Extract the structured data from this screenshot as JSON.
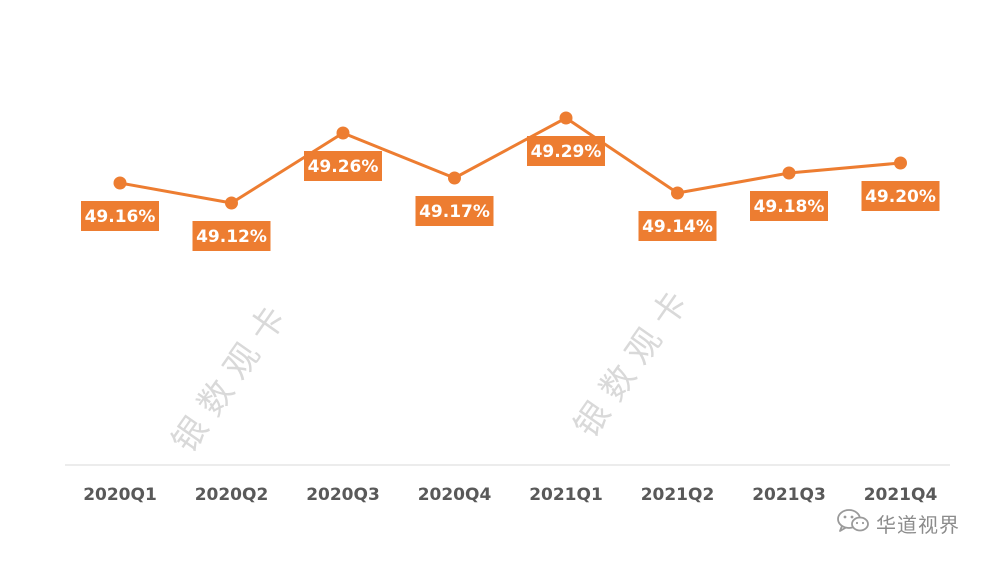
{
  "chart_data": {
    "type": "line",
    "categories": [
      "2020Q1",
      "2020Q2",
      "2020Q3",
      "2020Q4",
      "2021Q1",
      "2021Q2",
      "2021Q3",
      "2021Q4"
    ],
    "series": [
      {
        "values": [
          49.16,
          49.12,
          49.26,
          49.17,
          49.29,
          49.14,
          49.18,
          49.2
        ],
        "labels": [
          "49.16%",
          "49.12%",
          "49.26%",
          "49.17%",
          "49.29%",
          "49.14%",
          "49.18%",
          "49.20%"
        ],
        "label_positions": [
          "below",
          "below",
          "below",
          "below",
          "below",
          "below",
          "below",
          "below"
        ],
        "color": "#ED7D31"
      }
    ],
    "ylim": [
      48.95,
      49.35
    ],
    "grid": false,
    "axis_line_color": "#D9D9D9",
    "tick_color": "#595959",
    "label_text_color": "#FFFFFF"
  },
  "watermarks": [
    "银 数 观 卡",
    "银 数 观 卡"
  ],
  "brand": {
    "name": "华道视界",
    "icon": "wechat-icon"
  }
}
